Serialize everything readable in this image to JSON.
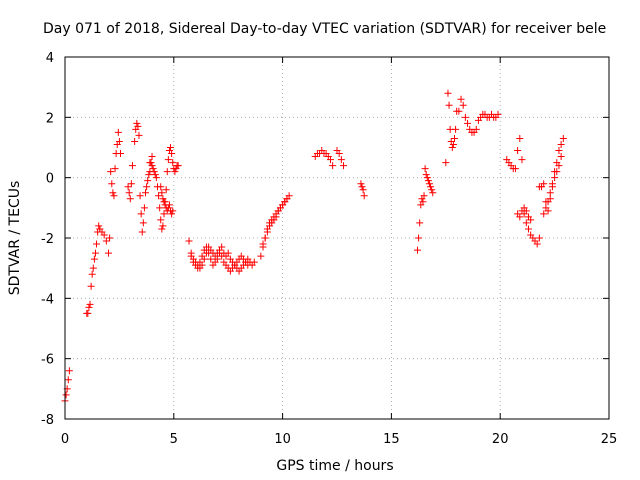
{
  "chart_data": {
    "type": "scatter",
    "title": "Day 071 of 2018, Sidereal Day-to-day VTEC variation (SDTVAR) for receiver bele",
    "xlabel": "GPS time / hours",
    "ylabel": "SDTVAR / TECUs",
    "xlim": [
      0,
      25
    ],
    "ylim": [
      -8,
      4
    ],
    "xticks": [
      0,
      5,
      10,
      15,
      20,
      25
    ],
    "yticks": [
      -8,
      -6,
      -4,
      -2,
      0,
      2,
      4
    ],
    "grid": true,
    "marker": "+",
    "color": "#ff0000",
    "segments": [
      {
        "x": [
          0.0,
          0.05,
          0.1,
          0.15,
          0.2
        ],
        "y": [
          -7.4,
          -7.2,
          -7.0,
          -6.7,
          -6.4
        ]
      },
      {
        "x": [
          1.0,
          1.05,
          1.1,
          1.15,
          1.2,
          1.25,
          1.3,
          1.35,
          1.4,
          1.45,
          1.5,
          1.55,
          1.6
        ],
        "y": [
          -4.5,
          -4.5,
          -4.3,
          -4.2,
          -3.6,
          -3.2,
          -3.0,
          -2.7,
          -2.5,
          -2.2,
          -1.8,
          -1.6,
          -1.7
        ]
      },
      {
        "x": [
          1.6,
          1.7,
          1.8,
          1.9,
          2.0,
          2.05,
          2.1,
          2.15,
          2.2,
          2.25,
          2.3,
          2.35,
          2.4,
          2.45,
          2.5,
          2.55
        ],
        "y": [
          -1.7,
          -1.8,
          -1.9,
          -2.1,
          -2.5,
          -2.0,
          0.2,
          -0.2,
          -0.5,
          -0.6,
          0.3,
          0.8,
          1.1,
          1.5,
          1.2,
          0.8
        ]
      },
      {
        "x": [
          2.9,
          2.95,
          3.0,
          3.05,
          3.1,
          3.2,
          3.25,
          3.3,
          3.35,
          3.4,
          3.45,
          3.5,
          3.55,
          3.6,
          3.65,
          3.7,
          3.75,
          3.8,
          3.85,
          3.9,
          3.95,
          4.0
        ],
        "y": [
          -0.3,
          -0.5,
          -0.7,
          -0.2,
          0.4,
          1.2,
          1.6,
          1.8,
          1.7,
          1.4,
          -0.6,
          -1.2,
          -1.8,
          -1.5,
          -1.0,
          -0.5,
          -0.3,
          -0.1,
          0.1,
          0.2,
          0.5,
          0.7
        ]
      },
      {
        "x": [
          3.9,
          4.0,
          4.05,
          4.1,
          4.15,
          4.2,
          4.25,
          4.3,
          4.35,
          4.4,
          4.45,
          4.5,
          4.55,
          4.6,
          4.65,
          4.7,
          4.75,
          4.8,
          4.85,
          4.9,
          4.95,
          5.0,
          5.05,
          5.1,
          5.15,
          5.2
        ],
        "y": [
          0.5,
          0.4,
          0.3,
          0.2,
          0.1,
          0.0,
          -0.3,
          -0.6,
          -1.0,
          -1.4,
          -1.7,
          -1.6,
          -1.2,
          -0.8,
          -0.4,
          0.2,
          0.6,
          0.9,
          1.0,
          0.8,
          0.5,
          0.3,
          0.2,
          0.3,
          0.4,
          0.4
        ]
      },
      {
        "x": [
          4.4,
          4.45,
          4.5,
          4.55,
          4.6,
          4.65,
          4.7,
          4.75,
          4.8,
          4.85,
          4.9,
          4.95
        ],
        "y": [
          -0.3,
          -0.5,
          -0.7,
          -0.8,
          -0.9,
          -1.0,
          -1.1,
          -1.0,
          -0.9,
          -1.1,
          -1.2,
          -1.1
        ]
      },
      {
        "x": [
          5.7,
          5.8,
          5.9,
          6.0,
          6.1,
          6.2,
          6.3,
          6.4,
          6.5,
          6.6,
          6.7,
          6.8,
          6.9,
          7.0,
          7.1,
          7.2,
          7.3,
          7.4,
          7.5,
          7.6,
          7.7,
          7.8,
          7.9,
          8.0,
          8.1,
          8.2,
          8.3,
          8.4,
          8.5,
          8.6,
          8.7
        ],
        "y": [
          -2.1,
          -2.5,
          -2.7,
          -2.8,
          -2.9,
          -3.0,
          -2.9,
          -2.7,
          -2.5,
          -2.3,
          -2.4,
          -2.5,
          -2.6,
          -2.5,
          -2.4,
          -2.6,
          -2.8,
          -2.9,
          -3.0,
          -3.1,
          -3.0,
          -2.9,
          -3.0,
          -3.1,
          -3.0,
          -2.9,
          -2.8,
          -2.7,
          -2.8,
          -2.9,
          -2.8
        ]
      },
      {
        "x": [
          5.8,
          5.9,
          6.0,
          6.1,
          6.2,
          6.3,
          6.4,
          6.5,
          6.6,
          6.7,
          6.8,
          6.9,
          7.0,
          7.1,
          7.2,
          7.3,
          7.4,
          7.5,
          7.6,
          7.7,
          7.8,
          7.9,
          8.0,
          8.1,
          8.2,
          8.3,
          8.4
        ],
        "y": [
          -2.6,
          -2.8,
          -2.9,
          -3.0,
          -2.8,
          -2.6,
          -2.4,
          -2.3,
          -2.5,
          -2.7,
          -2.9,
          -2.8,
          -2.7,
          -2.5,
          -2.3,
          -2.5,
          -2.6,
          -2.5,
          -2.7,
          -2.8,
          -2.9,
          -2.8,
          -2.7,
          -2.6,
          -2.7,
          -2.8,
          -2.9
        ]
      },
      {
        "x": [
          9.0,
          9.1,
          9.2,
          9.3,
          9.4,
          9.5,
          9.6,
          9.7,
          9.8,
          9.9,
          10.0,
          10.1,
          10.2,
          10.3
        ],
        "y": [
          -2.6,
          -2.3,
          -2.0,
          -1.7,
          -1.5,
          -1.4,
          -1.3,
          -1.2,
          -1.1,
          -1.0,
          -0.9,
          -0.8,
          -0.7,
          -0.6
        ]
      },
      {
        "x": [
          9.1,
          9.2,
          9.3,
          9.4,
          9.5,
          9.6,
          9.7,
          9.8,
          9.9,
          10.0,
          10.1,
          10.2
        ],
        "y": [
          -2.2,
          -2.0,
          -1.8,
          -1.6,
          -1.5,
          -1.4,
          -1.3,
          -1.1,
          -1.0,
          -0.9,
          -0.8,
          -0.7
        ]
      },
      {
        "x": [
          11.5,
          11.6,
          11.7,
          11.8,
          11.9,
          12.0,
          12.1,
          12.2,
          12.3
        ],
        "y": [
          0.7,
          0.8,
          0.8,
          0.9,
          0.8,
          0.8,
          0.7,
          0.6,
          0.4
        ]
      },
      {
        "x": [
          12.5,
          12.6,
          12.7,
          12.8
        ],
        "y": [
          0.9,
          0.8,
          0.6,
          0.4
        ]
      },
      {
        "x": [
          13.6,
          13.65,
          13.7,
          13.75
        ],
        "y": [
          -0.2,
          -0.3,
          -0.4,
          -0.6
        ]
      },
      {
        "x": [
          16.2,
          16.25,
          16.3,
          16.35,
          16.4,
          16.45,
          16.5,
          16.55,
          16.6,
          16.65,
          16.7,
          16.75,
          16.8,
          16.85,
          16.9
        ],
        "y": [
          -2.4,
          -2.0,
          -1.5,
          -0.9,
          -0.7,
          -0.8,
          -0.6,
          0.3,
          0.1,
          0.0,
          -0.1,
          -0.2,
          -0.3,
          -0.4,
          -0.5
        ]
      },
      {
        "x": [
          17.5,
          17.6,
          17.65,
          17.7,
          17.75,
          17.8,
          17.85,
          17.9,
          17.95,
          18.0,
          18.1,
          18.2,
          18.3,
          18.4
        ],
        "y": [
          0.5,
          2.8,
          2.4,
          1.6,
          1.2,
          1.0,
          1.1,
          1.3,
          1.6,
          2.2,
          2.2,
          2.6,
          2.4,
          2.0
        ]
      },
      {
        "x": [
          18.5,
          18.6,
          18.7,
          18.8,
          18.9,
          19.0,
          19.1,
          19.2,
          19.3,
          19.4,
          19.5,
          19.6,
          19.7,
          19.8,
          19.9
        ],
        "y": [
          1.8,
          1.6,
          1.5,
          1.5,
          1.6,
          1.9,
          2.0,
          2.1,
          2.1,
          2.0,
          2.0,
          2.1,
          2.0,
          2.0,
          2.1
        ]
      },
      {
        "x": [
          20.3,
          20.4,
          20.5,
          20.6,
          20.7,
          20.8,
          20.9,
          21.0
        ],
        "y": [
          0.6,
          0.5,
          0.4,
          0.3,
          0.3,
          0.9,
          1.3,
          0.6
        ]
      },
      {
        "x": [
          20.8,
          20.9,
          21.0,
          21.1,
          21.2,
          21.3,
          21.4,
          21.5,
          21.6,
          21.7,
          21.8
        ],
        "y": [
          -1.2,
          -1.3,
          -1.1,
          -1.2,
          -1.5,
          -1.7,
          -1.9,
          -2.0,
          -2.1,
          -2.2,
          -2.0
        ]
      },
      {
        "x": [
          21.1,
          21.2,
          21.3,
          21.4
        ],
        "y": [
          -1.0,
          -1.1,
          -1.3,
          -1.4
        ]
      },
      {
        "x": [
          21.8,
          21.9,
          22.0,
          22.1,
          22.2,
          22.3,
          22.4,
          22.5,
          22.6,
          22.7,
          22.8,
          22.9
        ],
        "y": [
          -0.3,
          -0.3,
          -0.2,
          -0.8,
          -1.1,
          -0.7,
          -0.2,
          0.2,
          0.5,
          0.9,
          1.1,
          1.3
        ]
      },
      {
        "x": [
          22.0,
          22.1,
          22.2,
          22.3,
          22.4,
          22.5,
          22.6,
          22.7,
          22.8
        ],
        "y": [
          -1.2,
          -1.0,
          -0.8,
          -0.5,
          -0.3,
          0.0,
          0.2,
          0.4,
          0.7
        ]
      }
    ]
  }
}
